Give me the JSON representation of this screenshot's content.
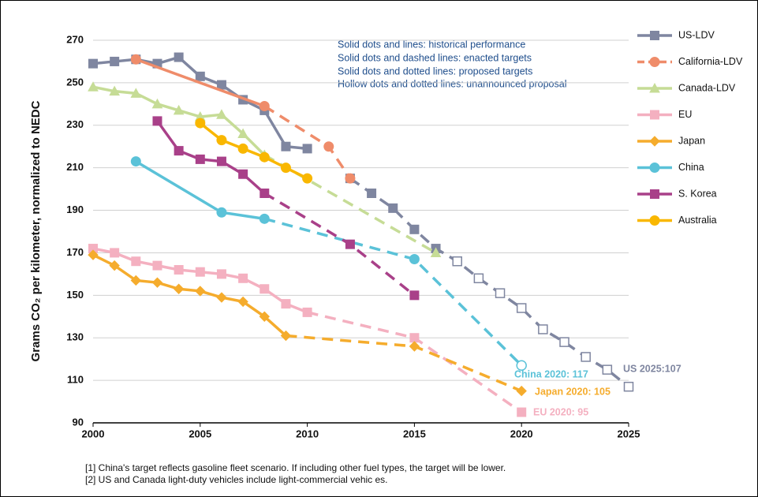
{
  "chart_data": {
    "type": "line",
    "y_label": "Grams CO₂ per kilometer, normalized to NEDC",
    "xlim": [
      2000,
      2025
    ],
    "xticks": [
      2000,
      2005,
      2010,
      2015,
      2020,
      2025
    ],
    "ylim": [
      90,
      270
    ],
    "yticks": [
      90,
      110,
      130,
      150,
      170,
      190,
      210,
      230,
      250,
      270
    ],
    "grid": true,
    "legend": "right",
    "notes": [
      "Solid dots and lines: historical performance",
      "Solid dots and dashed lines: enacted targets",
      "Solid dots and dotted lines: proposed targets",
      "Hollow dots and dotted lines: unannounced proposal"
    ],
    "end_labels": [
      "China 2020: 117",
      "Japan 2020: 105",
      "EU 2020: 95",
      "US 2025:107"
    ],
    "footnotes": [
      "[1] China's target reflects gasoline fleet scenario. If including other fuel types, the target will be lower.",
      "[2] US and Canada light-duty vehicles include light-commercial vehic es."
    ],
    "series": [
      {
        "name": "US-LDV",
        "color": "#7f86a0",
        "marker": "square",
        "dashed_from": 2011,
        "hollow_from": 2017,
        "x": [
          2000,
          2001,
          2002,
          2003,
          2004,
          2005,
          2006,
          2007,
          2008,
          2009,
          2010,
          2012,
          2013,
          2014,
          2015,
          2016,
          2017,
          2018,
          2019,
          2020,
          2021,
          2022,
          2023,
          2024,
          2025
        ],
        "values": [
          259,
          260,
          261,
          259,
          262,
          253,
          249,
          242,
          237,
          220,
          219,
          205,
          198,
          191,
          181,
          172,
          166,
          158,
          151,
          144,
          134,
          128,
          121,
          115,
          107
        ]
      },
      {
        "name": "California-LDV",
        "color": "#ef8c6a",
        "marker": "circle",
        "dashed_from": 2008,
        "x": [
          2002,
          2008,
          2011,
          2012
        ],
        "values": [
          261,
          239,
          220,
          205
        ]
      },
      {
        "name": "Canada-LDV",
        "color": "#c6dc96",
        "marker": "triangle",
        "dashed_from": 2008,
        "x": [
          2000,
          2001,
          2002,
          2003,
          2004,
          2005,
          2006,
          2007,
          2008,
          2016
        ],
        "values": [
          248,
          246,
          245,
          240,
          237,
          234,
          235,
          226,
          216,
          170
        ]
      },
      {
        "name": "EU",
        "color": "#f4b0c0",
        "marker": "square",
        "dashed_from": 2010,
        "x": [
          2000,
          2001,
          2002,
          2003,
          2004,
          2005,
          2006,
          2007,
          2008,
          2009,
          2010,
          2015,
          2020
        ],
        "values": [
          172,
          170,
          166,
          164,
          162,
          161,
          160,
          158,
          153,
          146,
          142,
          130,
          95
        ]
      },
      {
        "name": "Japan",
        "color": "#f5ac2d",
        "marker": "diamond",
        "dashed_from": 2009,
        "x": [
          2000,
          2001,
          2002,
          2003,
          2004,
          2005,
          2006,
          2007,
          2008,
          2009,
          2015,
          2020
        ],
        "values": [
          169,
          164,
          157,
          156,
          153,
          152,
          149,
          147,
          140,
          131,
          126,
          105
        ]
      },
      {
        "name": "China",
        "color": "#5bc2d8",
        "marker": "circle",
        "dashed_from": 2008,
        "hollow_from": 2020,
        "x": [
          2002,
          2006,
          2008,
          2015,
          2020
        ],
        "values": [
          213,
          189,
          186,
          167,
          117
        ]
      },
      {
        "name": "S. Korea",
        "color": "#a94089",
        "marker": "square",
        "dashed_from": 2008,
        "x": [
          2003,
          2004,
          2005,
          2006,
          2007,
          2008,
          2012,
          2015
        ],
        "values": [
          232,
          218,
          214,
          213,
          207,
          198,
          174,
          150
        ]
      },
      {
        "name": "Australia",
        "color": "#f9b700",
        "marker": "circle",
        "x": [
          2005,
          2006,
          2007,
          2008,
          2009,
          2010
        ],
        "values": [
          231,
          223,
          219,
          215,
          210,
          205
        ]
      }
    ]
  }
}
